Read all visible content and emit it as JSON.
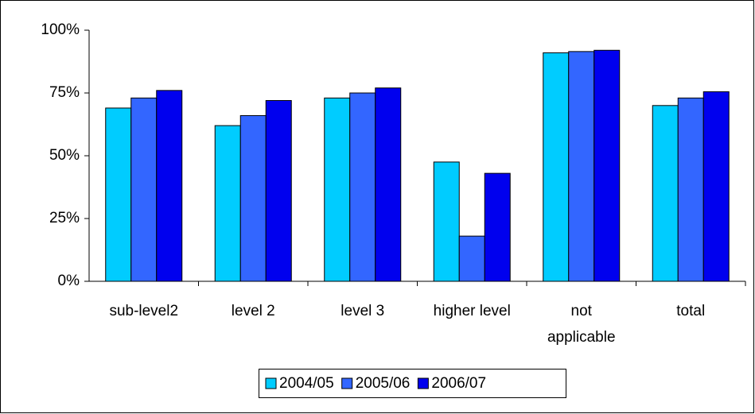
{
  "chart_data": {
    "type": "bar",
    "categories": [
      "sub-level2",
      "level 2",
      "level 3",
      "higher level",
      "not applicable",
      "total"
    ],
    "series": [
      {
        "name": "2004/05",
        "color": "#00ccff",
        "values": [
          69,
          62,
          73,
          47.5,
          91,
          70
        ]
      },
      {
        "name": "2005/06",
        "color": "#3366ff",
        "values": [
          73,
          66,
          75,
          18,
          91.5,
          73
        ]
      },
      {
        "name": "2006/07",
        "color": "#0000ee",
        "values": [
          76,
          72,
          77,
          43,
          92,
          75.5
        ]
      }
    ],
    "ylim": [
      0,
      100
    ],
    "yticks": [
      {
        "value": 0,
        "label": "0%"
      },
      {
        "value": 25,
        "label": "25%"
      },
      {
        "value": 50,
        "label": "50%"
      },
      {
        "value": 75,
        "label": "75%"
      },
      {
        "value": 100,
        "label": "100%"
      }
    ],
    "grid": false,
    "legend": "bottom"
  }
}
